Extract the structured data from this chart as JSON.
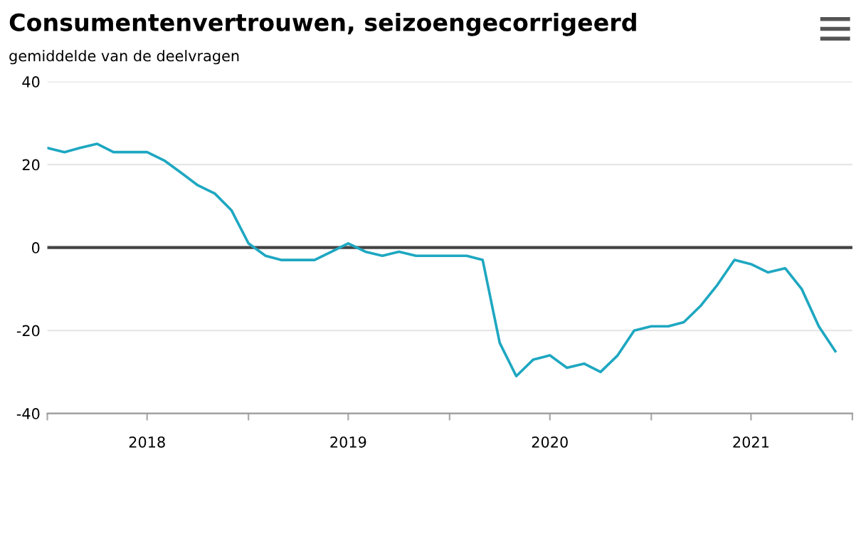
{
  "chart_data": {
    "type": "line",
    "title": "Consumentenvertrouwen, seizoengecorrigeerd",
    "subtitle": "gemiddelde van de deelvragen",
    "x": [
      "2018-01",
      "2018-02",
      "2018-03",
      "2018-04",
      "2018-05",
      "2018-06",
      "2018-07",
      "2018-08",
      "2018-09",
      "2018-10",
      "2018-11",
      "2018-12",
      "2019-01",
      "2019-02",
      "2019-03",
      "2019-04",
      "2019-05",
      "2019-06",
      "2019-07",
      "2019-08",
      "2019-09",
      "2019-10",
      "2019-11",
      "2019-12",
      "2020-01",
      "2020-02",
      "2020-03",
      "2020-04",
      "2020-05",
      "2020-06",
      "2020-07",
      "2020-08",
      "2020-09",
      "2020-10",
      "2020-11",
      "2020-12",
      "2021-01",
      "2021-02",
      "2021-03",
      "2021-04",
      "2021-05",
      "2021-06",
      "2021-07",
      "2021-08",
      "2021-09",
      "2021-10",
      "2021-11",
      "2021-12"
    ],
    "series": [
      {
        "color": "#1ea7c1",
        "values": [
          24,
          23,
          24,
          25,
          23,
          23,
          23,
          21,
          18,
          15,
          13,
          9,
          1,
          -2,
          -3,
          -3,
          -3,
          -1,
          1,
          -1,
          -2,
          -1,
          -2,
          -2,
          -2,
          -2,
          -3,
          -23,
          -31,
          -27,
          -26,
          -29,
          -28,
          -30,
          -26,
          -20,
          -19,
          -19,
          -18,
          -14,
          -9,
          -3,
          -4,
          -6,
          -5,
          -10,
          -19,
          -25
        ]
      }
    ],
    "ylim": [
      -40,
      40
    ],
    "yticks": [
      -40,
      -20,
      0,
      20,
      40
    ],
    "grid": "y",
    "xlim": [
      "2018-01",
      "2022-01"
    ],
    "xticks": [
      {
        "value": "2018-01",
        "label": null
      },
      {
        "value": "2018-07",
        "label": "2018"
      },
      {
        "value": "2019-01",
        "label": null
      },
      {
        "value": "2019-07",
        "label": "2019"
      },
      {
        "value": "2020-01",
        "label": null
      },
      {
        "value": "2020-07",
        "label": "2020"
      },
      {
        "value": "2021-01",
        "label": null
      },
      {
        "value": "2021-07",
        "label": "2021"
      },
      {
        "value": "2022-01",
        "label": null
      }
    ],
    "ref_lines": [
      {
        "axis": "y",
        "value": 0,
        "color": "#444444"
      }
    ],
    "marker": "none",
    "legend": false
  }
}
